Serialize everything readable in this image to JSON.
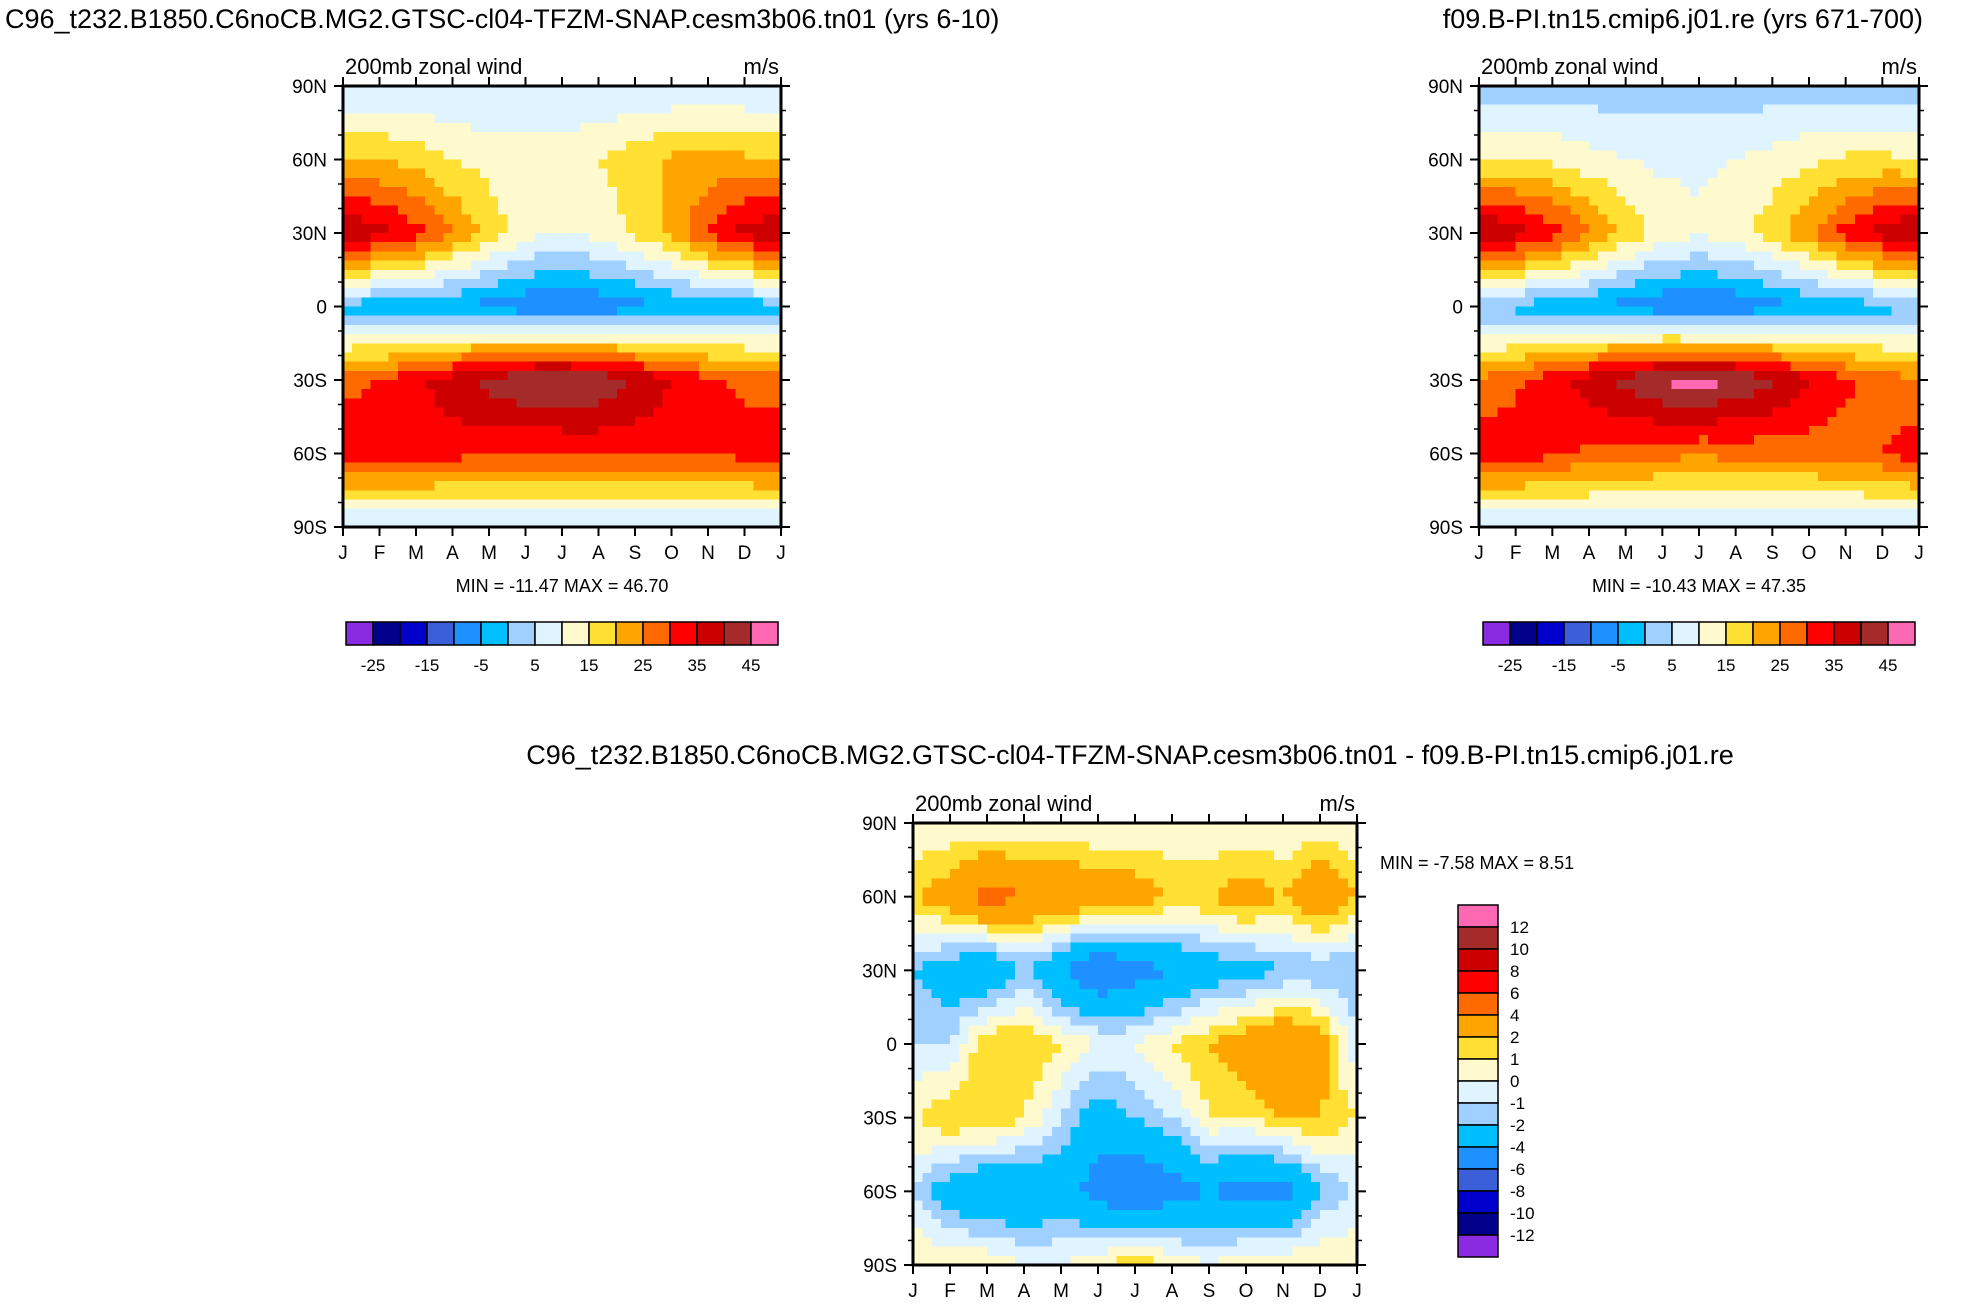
{
  "panels": [
    {
      "id": "left",
      "header": "C96_t232.B1850.C6noCB.MG2.GTSC-cl04-TFZM-SNAP.cesm3b06.tn01 (yrs 6-10)",
      "subtitle_left": "200mb zonal wind",
      "subtitle_right": "m/s",
      "stats": "MIN = -11.47 MAX =  46.70"
    },
    {
      "id": "right",
      "header": "f09.B-PI.tn15.cmip6.j01.re (yrs 671-700)",
      "subtitle_left": "200mb zonal wind",
      "subtitle_right": "m/s",
      "stats": "MIN = -10.43 MAX =  47.35"
    },
    {
      "id": "diff",
      "header": "C96_t232.B1850.C6noCB.MG2.GTSC-cl04-TFZM-SNAP.cesm3b06.tn01 - f09.B-PI.tn15.cmip6.j01.re",
      "subtitle_left": "200mb zonal wind",
      "subtitle_right": "m/s",
      "stats": "MIN =  -7.58 MAX =   8.51"
    }
  ],
  "months": [
    "J",
    "F",
    "M",
    "A",
    "M",
    "J",
    "J",
    "A",
    "S",
    "O",
    "N",
    "D",
    "J"
  ],
  "lats": [
    "90N",
    "60N",
    "30N",
    "0",
    "30S",
    "60S",
    "90S"
  ],
  "colorbar_main": {
    "colors": [
      "#8a2be2",
      "#00008b",
      "#0000cd",
      "#3a5fd9",
      "#1e90ff",
      "#00bfff",
      "#a0d0ff",
      "#e0f4ff",
      "#fffacd",
      "#ffe033",
      "#ffa500",
      "#ff6a00",
      "#ff0000",
      "#cd0000",
      "#a52a2a",
      "#ff69b4"
    ],
    "labels": [
      "-25",
      "-15",
      "-5",
      "5",
      "15",
      "25",
      "35",
      "45"
    ]
  },
  "colorbar_diff": {
    "colors": [
      "#8a2be2",
      "#00008b",
      "#0000cd",
      "#3a5fd9",
      "#1e90ff",
      "#00bfff",
      "#a0d0ff",
      "#e0f4ff",
      "#fffacd",
      "#ffe033",
      "#ffa500",
      "#ff6a00",
      "#ff0000",
      "#cd0000",
      "#a52a2a",
      "#ff69b4"
    ],
    "labels": [
      "12",
      "10",
      "8",
      "6",
      "4",
      "2",
      "1",
      "0",
      "-1",
      "-2",
      "-4",
      "-6",
      "-8",
      "-10",
      "-12"
    ]
  },
  "chart_data": [
    {
      "type": "heatmap",
      "title": "200mb zonal wind",
      "units": "m/s",
      "case": "C96_t232.B1850.C6noCB.MG2.GTSC-cl04-TFZM-SNAP.cesm3b06.tn01 (yrs 6-10)",
      "x": [
        "J",
        "F",
        "M",
        "A",
        "M",
        "J",
        "J",
        "A",
        "S",
        "O",
        "N",
        "D",
        "J"
      ],
      "y": [
        "90S",
        "60S",
        "30S",
        "0",
        "30N",
        "60N",
        "90N"
      ],
      "y_values": [
        -90,
        -60,
        -30,
        0,
        30,
        60,
        90
      ],
      "z": [
        [
          4,
          4,
          4,
          4,
          4,
          4,
          4,
          4,
          4,
          4,
          4,
          4,
          4
        ],
        [
          34,
          34,
          33,
          32,
          31,
          30,
          30,
          31,
          31,
          31,
          31,
          32,
          34
        ],
        [
          28,
          30,
          34,
          38,
          42,
          45,
          46,
          44,
          40,
          35,
          31,
          29,
          28
        ],
        [
          -2,
          -3,
          -4,
          -5,
          -7,
          -9,
          -10,
          -9,
          -7,
          -5,
          -4,
          -3,
          -2
        ],
        [
          40,
          37,
          32,
          25,
          18,
          12,
          10,
          12,
          16,
          22,
          30,
          37,
          40
        ],
        [
          20,
          20,
          18,
          15,
          13,
          13,
          13,
          15,
          18,
          21,
          22,
          21,
          20
        ],
        [
          5,
          5,
          5,
          5,
          5,
          5,
          5,
          5,
          5,
          5,
          5,
          5,
          5
        ]
      ],
      "min": -11.47,
      "max": 46.7,
      "contour_levels": [
        -25,
        -20,
        -15,
        -10,
        -5,
        0,
        5,
        10,
        15,
        20,
        25,
        30,
        35,
        40,
        45
      ]
    },
    {
      "type": "heatmap",
      "title": "200mb zonal wind",
      "units": "m/s",
      "case": "f09.B-PI.tn15.cmip6.j01.re (yrs 671-700)",
      "x": [
        "J",
        "F",
        "M",
        "A",
        "M",
        "J",
        "J",
        "A",
        "S",
        "O",
        "N",
        "D",
        "J"
      ],
      "y": [
        "90S",
        "60S",
        "30S",
        "0",
        "30N",
        "60N",
        "90N"
      ],
      "y_values": [
        -90,
        -60,
        -30,
        0,
        30,
        60,
        90
      ],
      "z": [
        [
          4,
          4,
          4,
          4,
          4,
          4,
          4,
          4,
          4,
          4,
          4,
          4,
          4
        ],
        [
          33,
          33,
          31,
          29,
          28,
          27,
          26,
          27,
          27,
          27,
          28,
          30,
          33
        ],
        [
          26,
          29,
          33,
          38,
          42,
          46,
          47,
          45,
          41,
          36,
          31,
          28,
          26
        ],
        [
          -1,
          -2,
          -3,
          -5,
          -7,
          -9,
          -10,
          -9,
          -7,
          -5,
          -3,
          -2,
          -1
        ],
        [
          41,
          38,
          33,
          26,
          19,
          13,
          11,
          13,
          18,
          24,
          32,
          38,
          41
        ],
        [
          15,
          15,
          14,
          12,
          10,
          9,
          9,
          10,
          12,
          14,
          16,
          16,
          15
        ],
        [
          2,
          2,
          2,
          2,
          2,
          2,
          2,
          2,
          2,
          2,
          2,
          2,
          2
        ]
      ],
      "min": -10.43,
      "max": 47.35,
      "contour_levels": [
        -25,
        -20,
        -15,
        -10,
        -5,
        0,
        5,
        10,
        15,
        20,
        25,
        30,
        35,
        40,
        45
      ]
    },
    {
      "type": "heatmap",
      "title": "200mb zonal wind",
      "units": "m/s",
      "case": "C96_t232.B1850.C6noCB.MG2.GTSC-cl04-TFZM-SNAP.cesm3b06.tn01 - f09.B-PI.tn15.cmip6.j01.re",
      "x": [
        "J",
        "F",
        "M",
        "A",
        "M",
        "J",
        "J",
        "A",
        "S",
        "O",
        "N",
        "D",
        "J"
      ],
      "y": [
        "90S",
        "60S",
        "30S",
        "0",
        "30N",
        "60N",
        "90N"
      ],
      "y_values": [
        -90,
        -60,
        -30,
        0,
        30,
        60,
        90
      ],
      "z": [
        [
          1,
          1,
          1,
          0,
          0,
          1,
          2,
          1,
          0,
          1,
          1,
          1,
          1
        ],
        [
          -1,
          -3,
          -4,
          -4,
          -3,
          -5,
          -6,
          -5,
          -4,
          -5,
          -5,
          -2,
          -1
        ],
        [
          1,
          2,
          2,
          1,
          -1,
          -3,
          -2,
          -1,
          1,
          1,
          2,
          2,
          1
        ],
        [
          -1,
          -1,
          2,
          2,
          1,
          0,
          0,
          1,
          2,
          3,
          4,
          3,
          -1
        ],
        [
          -2,
          -3,
          -4,
          -2,
          -4,
          -6,
          -5,
          -4,
          -3,
          -3,
          -2,
          -2,
          -2
        ],
        [
          2,
          3,
          5,
          4,
          4,
          3,
          3,
          2,
          2,
          3,
          2,
          4,
          2
        ],
        [
          0,
          0,
          0,
          0,
          0,
          0,
          0,
          0,
          0,
          0,
          0,
          0,
          0
        ]
      ],
      "min": -7.58,
      "max": 8.51,
      "contour_levels": [
        -12,
        -10,
        -8,
        -6,
        -4,
        -2,
        -1,
        0,
        1,
        2,
        4,
        6,
        8,
        10,
        12
      ]
    }
  ]
}
